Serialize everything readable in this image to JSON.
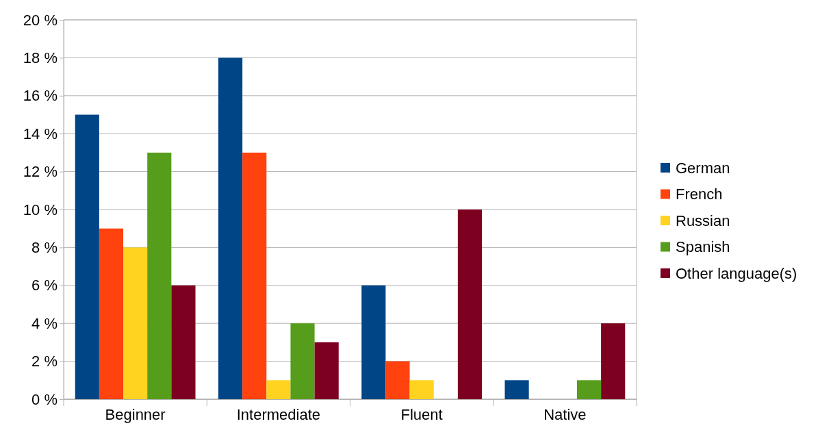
{
  "chart_data": {
    "type": "bar",
    "categories": [
      "Beginner",
      "Intermediate",
      "Fluent",
      "Native"
    ],
    "series": [
      {
        "name": "German",
        "color": "#004586",
        "values": [
          15,
          18,
          6,
          1
        ]
      },
      {
        "name": "French",
        "color": "#ff420e",
        "values": [
          9,
          13,
          2,
          0
        ]
      },
      {
        "name": "Russian",
        "color": "#ffd320",
        "values": [
          8,
          1,
          1,
          0
        ]
      },
      {
        "name": "Spanish",
        "color": "#579d1c",
        "values": [
          13,
          4,
          0,
          1
        ]
      },
      {
        "name": "Other language(s)",
        "color": "#7e0021",
        "values": [
          6,
          3,
          10,
          4
        ]
      }
    ],
    "ylim": [
      0,
      20
    ],
    "yticks": [
      {
        "value": 0,
        "label": "0 %"
      },
      {
        "value": 2,
        "label": "2 %"
      },
      {
        "value": 4,
        "label": "4 %"
      },
      {
        "value": 6,
        "label": "6 %"
      },
      {
        "value": 8,
        "label": "8 %"
      },
      {
        "value": 10,
        "label": "10 %"
      },
      {
        "value": 12,
        "label": "12 %"
      },
      {
        "value": 14,
        "label": "14 %"
      },
      {
        "value": 16,
        "label": "16 %"
      },
      {
        "value": 18,
        "label": "18 %"
      },
      {
        "value": 20,
        "label": "20 %"
      }
    ],
    "grid": "y",
    "legend": "right"
  }
}
